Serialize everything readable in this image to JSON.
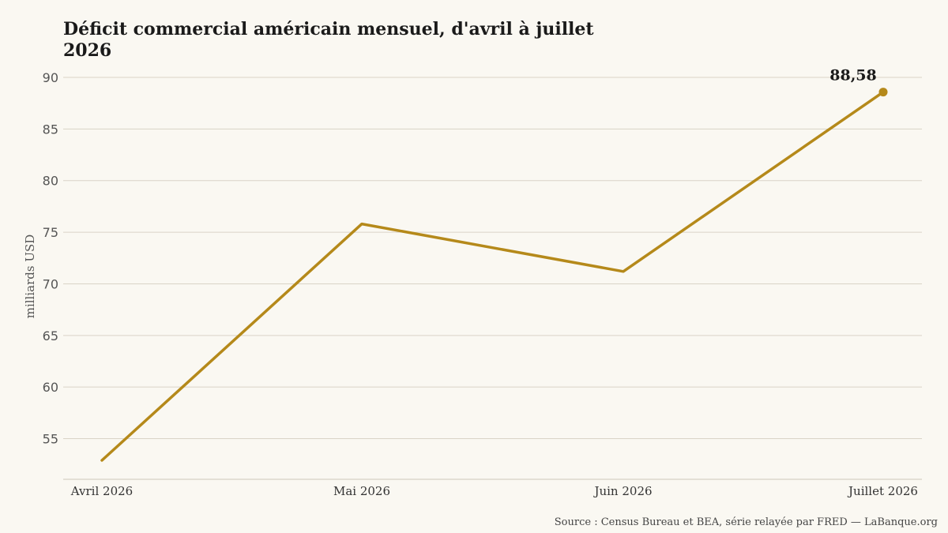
{
  "chart_data": {
    "type": "line",
    "title_line1": "Déficit commercial américain mensuel, d'avril à juillet",
    "title_line2": "2026",
    "xlabel": "",
    "ylabel": "milliards USD",
    "categories": [
      "Avril 2026",
      "Mai 2026",
      "Juin 2026",
      "Juillet 2026"
    ],
    "series": [
      {
        "values": [
          52.9,
          75.8,
          71.2,
          88.58
        ]
      }
    ],
    "yticks": [
      "55",
      "60",
      "65",
      "70",
      "75",
      "80",
      "85",
      "90"
    ],
    "ylim": [
      51.5,
      90
    ],
    "grid": true,
    "annotation": {
      "text": "88,58"
    },
    "source": "Source : Census Bureau et BEA, série relayée par FRED — LaBanque.org",
    "colors": {
      "line": "#b5891a",
      "background": "#faf8f2"
    }
  }
}
